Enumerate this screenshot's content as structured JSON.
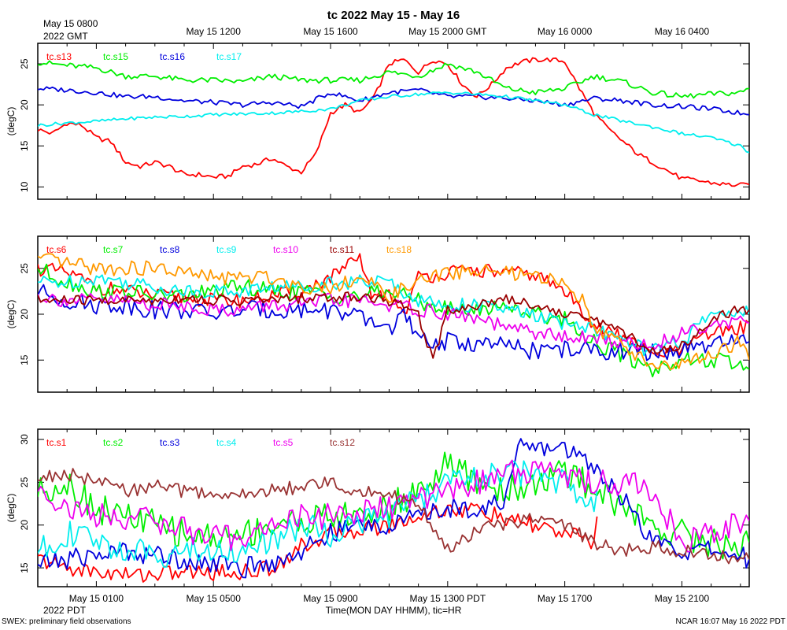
{
  "title": "tc 2022 May 15 - May 16",
  "top_axis": {
    "ticks": [
      "May 15 0800",
      "May 15 1200",
      "May 15 1600",
      "May 15 2000 GMT",
      "May 16 0000",
      "May 16 0400"
    ],
    "year_label": "2022 GMT"
  },
  "bottom_axis": {
    "ticks": [
      "May 15 0100",
      "May 15 0500",
      "May 15 0900",
      "May 15 1300 PDT",
      "May 15 1700",
      "May 15 2100"
    ],
    "year_label": "2022 PDT",
    "label": "Time(MON DAY HHMM), tic=HR"
  },
  "footer_left": "SWEX: preliminary field observations",
  "footer_right": "NCAR 16:07 May 16 2022 PDT",
  "chart_data": [
    {
      "type": "line",
      "ylabel": "(degC)",
      "ylim": [
        8.5,
        27.5
      ],
      "yticks": [
        10,
        15,
        20,
        25
      ],
      "xlim": [
        0,
        24.3
      ],
      "series": [
        {
          "name": "tc.s13",
          "color": "#ff0000",
          "jitter": 0.3,
          "x": [
            0,
            0.5,
            1,
            1.5,
            2,
            2.5,
            3,
            3.5,
            4,
            4.5,
            5,
            5.5,
            6,
            6.5,
            7,
            7.5,
            8,
            8.5,
            9,
            9.5,
            10,
            10.5,
            11,
            11.5,
            12,
            12.5,
            13,
            13.5,
            14,
            14.5,
            15,
            15.5,
            16,
            16.5,
            17,
            17.5,
            18,
            18.5,
            19,
            19.5,
            20,
            20.5,
            21,
            21.5,
            22,
            22.5,
            23,
            23.5,
            24,
            24.3
          ],
          "values": [
            17,
            16.5,
            17.8,
            17.5,
            16,
            15.5,
            13,
            12.5,
            13,
            12.5,
            11.5,
            11.5,
            11.2,
            11.3,
            12.5,
            12.8,
            13.5,
            12.5,
            11.8,
            14,
            19,
            20,
            19,
            21,
            25,
            25.5,
            24,
            25.5,
            25,
            22.5,
            21,
            22.5,
            24.5,
            25.2,
            25.5,
            25.5,
            25.3,
            22,
            19,
            17,
            15.5,
            14,
            13,
            12,
            11,
            10.8,
            10.5,
            10.3,
            10.2,
            10.3
          ]
        },
        {
          "name": "tc.s15",
          "color": "#00ee00",
          "jitter": 0.35,
          "x": [
            0,
            1,
            2,
            3,
            4,
            5,
            6,
            7,
            8,
            9,
            10,
            11,
            12,
            13,
            14,
            15,
            16,
            17,
            18,
            19,
            20,
            21,
            22,
            23,
            24,
            24.3
          ],
          "values": [
            25.2,
            24.8,
            24.5,
            23.5,
            23.5,
            23,
            23,
            22.8,
            23.5,
            23,
            23,
            23,
            24,
            23.5,
            25,
            24,
            22,
            21.5,
            22,
            23.5,
            22.8,
            21.5,
            21,
            21.3,
            21.5,
            22
          ]
        },
        {
          "name": "tc.s16",
          "color": "#0000dd",
          "jitter": 0.3,
          "x": [
            0,
            1,
            2,
            3,
            4,
            5,
            6,
            7,
            8,
            9,
            10,
            11,
            12,
            13,
            14,
            15,
            16,
            17,
            18,
            19,
            20,
            21,
            22,
            23,
            24,
            24.3
          ],
          "values": [
            22,
            21.8,
            21.5,
            21,
            21,
            20.5,
            20.3,
            20,
            20.3,
            19.8,
            21.5,
            20.5,
            21.5,
            21.8,
            21,
            21,
            20.8,
            20.5,
            20,
            20.8,
            20.5,
            20,
            19.8,
            19.5,
            19,
            18.8
          ]
        },
        {
          "name": "tc.s17",
          "color": "#00eeee",
          "jitter": 0.2,
          "x": [
            0,
            1,
            2,
            3,
            4,
            5,
            6,
            7,
            8,
            9,
            10,
            11,
            12,
            13,
            14,
            15,
            16,
            17,
            18,
            19,
            20,
            21,
            22,
            23,
            24,
            24.3
          ],
          "values": [
            17.5,
            17.8,
            18,
            18.3,
            18.5,
            18.6,
            18.8,
            18.9,
            19,
            19.2,
            19.5,
            20.5,
            21,
            21.3,
            21.5,
            21.3,
            21,
            20.5,
            20,
            18.8,
            18,
            17.3,
            16.5,
            16,
            15,
            14.2
          ]
        }
      ]
    },
    {
      "type": "line",
      "ylabel": "(degC)",
      "ylim": [
        11.5,
        28.5
      ],
      "yticks": [
        15,
        20,
        25
      ],
      "xlim": [
        0,
        24.3
      ],
      "series": [
        {
          "name": "tc.s6",
          "color": "#ff0000",
          "jitter": 0.8,
          "x": [
            0,
            1,
            2,
            3,
            4,
            5,
            6,
            7,
            8,
            9,
            10,
            11,
            11.5,
            12,
            12.5,
            13,
            14,
            15,
            16,
            17,
            18,
            19,
            19.5,
            20,
            21,
            22,
            23,
            24,
            24.3
          ],
          "values": [
            25,
            24.5,
            23,
            22.5,
            22,
            21.8,
            21.5,
            21.5,
            22,
            22.5,
            24,
            26,
            21.5,
            22.5,
            20,
            24,
            24.5,
            24.8,
            24.5,
            24.3,
            22.5,
            19,
            18,
            17.5,
            15.5,
            16,
            18,
            18.5,
            19
          ]
        },
        {
          "name": "tc.s7",
          "color": "#00ee00",
          "jitter": 0.9,
          "x": [
            0,
            1,
            2,
            3,
            4,
            5,
            6,
            7,
            8,
            9,
            10,
            11,
            12,
            13,
            14,
            15,
            16,
            17,
            18,
            19,
            20,
            21,
            22,
            23,
            24,
            24.3
          ],
          "values": [
            25,
            23.5,
            22.5,
            22.5,
            22,
            22,
            22.5,
            23,
            22.5,
            22.5,
            22,
            22,
            22.5,
            21.5,
            20.5,
            20.5,
            21,
            20,
            19.5,
            17,
            15.5,
            14,
            15,
            15,
            14.5,
            14
          ]
        },
        {
          "name": "tc.s8",
          "color": "#0000dd",
          "jitter": 1.0,
          "x": [
            0,
            1,
            2,
            3,
            4,
            5,
            6,
            7,
            8,
            9,
            10,
            11,
            11.5,
            12,
            12.5,
            13,
            14,
            15,
            16,
            17,
            18,
            19,
            20,
            21,
            22,
            23,
            24,
            24.3
          ],
          "values": [
            22.5,
            21.5,
            21,
            21,
            20.5,
            20.5,
            20,
            20.5,
            20.5,
            20.5,
            20.5,
            19.5,
            19,
            18.5,
            20,
            17,
            17,
            16.8,
            16.5,
            16,
            16.2,
            16,
            16,
            15.8,
            16,
            16.5,
            17,
            17
          ]
        },
        {
          "name": "tc.s9",
          "color": "#00eeee",
          "jitter": 0.8,
          "x": [
            0,
            1,
            2,
            3,
            4,
            5,
            6,
            7,
            8,
            9,
            10,
            11,
            12,
            13,
            14,
            15,
            16,
            17,
            18,
            19,
            20,
            21,
            22,
            23,
            24,
            24.3
          ],
          "values": [
            23.5,
            23.5,
            24,
            23.5,
            23,
            22.5,
            22.5,
            22.5,
            23,
            23,
            23.5,
            23.5,
            23.5,
            21.5,
            21,
            21,
            20.5,
            19.8,
            19,
            18.5,
            17,
            16,
            17,
            20,
            20.5,
            20
          ]
        },
        {
          "name": "tc.s10",
          "color": "#ee00ee",
          "jitter": 0.8,
          "x": [
            0,
            1,
            2,
            3,
            4,
            5,
            6,
            7,
            8,
            9,
            10,
            11,
            12,
            13,
            14,
            15,
            16,
            17,
            18,
            19,
            20,
            21,
            22,
            23,
            24,
            24.3
          ],
          "values": [
            22,
            21.5,
            21.5,
            21.5,
            21,
            21,
            20.5,
            20.5,
            21,
            21,
            21.5,
            21.5,
            21,
            20.5,
            20,
            19.5,
            18.5,
            18,
            17.5,
            17.3,
            17,
            16.5,
            18,
            19,
            19.3,
            19
          ]
        },
        {
          "name": "tc.s11",
          "color": "#990000",
          "jitter": 0.6,
          "x": [
            0,
            1,
            2,
            3,
            4,
            5,
            6,
            7,
            8,
            9,
            10,
            11,
            12,
            13,
            13.5,
            14,
            15,
            16,
            17,
            18,
            19,
            20,
            21,
            22,
            23,
            24,
            24.3
          ],
          "values": [
            21.5,
            21.5,
            21.5,
            21.5,
            21.5,
            21.8,
            21.5,
            21.5,
            21.5,
            21.8,
            21.8,
            22,
            21.5,
            20,
            15,
            20.5,
            21,
            21.8,
            21,
            20,
            19.5,
            18,
            16,
            16.5,
            19.5,
            20.5,
            20.5
          ]
        },
        {
          "name": "tc.s18",
          "color": "#ff9900",
          "jitter": 0.8,
          "x": [
            0,
            1,
            2,
            3,
            4,
            5,
            6,
            7,
            8,
            9,
            10,
            11,
            12,
            13,
            14,
            15,
            16,
            17,
            18,
            18.5,
            19,
            19.5,
            20,
            21,
            22,
            23,
            24,
            24.3
          ],
          "values": [
            26,
            25.5,
            25,
            25,
            25,
            24.5,
            24,
            24,
            24,
            23,
            23,
            24,
            22,
            23.5,
            24.5,
            24.8,
            24.5,
            24,
            23.5,
            22,
            19,
            17.5,
            16.5,
            14.5,
            14.5,
            15.5,
            17,
            15
          ]
        }
      ]
    },
    {
      "type": "line",
      "ylabel": "(degC)",
      "ylim": [
        12.8,
        31.2
      ],
      "yticks": [
        15,
        20,
        25,
        30
      ],
      "xlim": [
        0,
        24.3
      ],
      "series": [
        {
          "name": "tc.s1",
          "color": "#ff0000",
          "jitter": 1.0,
          "x": [
            0,
            1,
            2,
            3,
            4,
            5,
            6,
            7,
            8,
            9,
            10,
            11,
            12,
            13,
            14,
            14.5,
            15,
            16,
            17,
            18,
            19,
            19.1
          ],
          "values": [
            16,
            15,
            14.5,
            14.2,
            14.3,
            14.5,
            14.5,
            14.5,
            15,
            17.5,
            19,
            19.5,
            20,
            21,
            22,
            21.5,
            22,
            20.5,
            20,
            19,
            18,
            21
          ]
        },
        {
          "name": "tc.s2",
          "color": "#00ee00",
          "jitter": 1.8,
          "x": [
            0,
            1,
            2,
            3,
            4,
            5,
            6,
            7,
            8,
            9,
            10,
            11,
            12,
            13,
            14,
            15,
            16,
            17,
            18,
            19,
            20,
            21,
            22,
            23,
            24,
            24.3
          ],
          "values": [
            24,
            25,
            22,
            21,
            20,
            19,
            18.5,
            19,
            20,
            20.5,
            21,
            21,
            22,
            24,
            27,
            25,
            24,
            25,
            26,
            24.5,
            22,
            20,
            19,
            18,
            17.5,
            18
          ]
        },
        {
          "name": "tc.s3",
          "color": "#0000dd",
          "jitter": 1.2,
          "x": [
            0,
            1,
            2,
            3,
            4,
            5,
            6,
            7,
            8,
            9,
            10,
            11,
            12,
            13,
            14,
            15,
            16,
            16.5,
            17,
            18,
            19,
            20,
            21,
            22,
            23,
            24,
            24.3
          ],
          "values": [
            15.5,
            16,
            16.5,
            17,
            16.5,
            16,
            15.5,
            15,
            15.5,
            17,
            19,
            20,
            20,
            21,
            22,
            22,
            23,
            29.5,
            29,
            29,
            27,
            23,
            18,
            17,
            17,
            16.5,
            16
          ]
        },
        {
          "name": "tc.s4",
          "color": "#00eeee",
          "jitter": 1.6,
          "x": [
            0,
            1,
            2,
            3,
            4,
            5,
            6,
            7,
            8,
            9,
            10,
            11,
            12,
            13,
            14,
            15,
            16,
            17,
            18,
            19,
            19.1
          ],
          "values": [
            17,
            19,
            18,
            17,
            16.5,
            17,
            17,
            17,
            18,
            20,
            19,
            20.5,
            21,
            23,
            25,
            25.5,
            26,
            26,
            25,
            23,
            24
          ]
        },
        {
          "name": "tc.s5",
          "color": "#ee00ee",
          "jitter": 1.5,
          "x": [
            0,
            1,
            2,
            3,
            4,
            5,
            6,
            7,
            8,
            9,
            10,
            11,
            12,
            13,
            14,
            15,
            16,
            17,
            18,
            19,
            20,
            21,
            22,
            23,
            24,
            24.3
          ],
          "values": [
            24.5,
            22,
            21,
            21,
            20.5,
            19.5,
            18.5,
            18.5,
            20,
            21,
            21,
            21.5,
            22,
            23,
            24,
            25,
            26,
            26.5,
            26,
            25,
            25,
            24,
            18,
            19,
            20.5,
            20.5
          ]
        },
        {
          "name": "tc.s12",
          "color": "#993333",
          "jitter": 0.8,
          "x": [
            0,
            1,
            2,
            3,
            4,
            5,
            6,
            7,
            8,
            9,
            10,
            11,
            12,
            13,
            14,
            15,
            16,
            17,
            18,
            19,
            20,
            21,
            22,
            23,
            24,
            24.3
          ],
          "values": [
            25.5,
            26,
            25,
            24,
            24.5,
            24,
            23.5,
            23.5,
            24,
            24.5,
            25,
            24,
            23.5,
            22.5,
            17,
            19.5,
            20,
            21,
            20,
            18,
            17,
            17.5,
            17,
            16.5,
            16,
            16
          ]
        }
      ]
    }
  ]
}
